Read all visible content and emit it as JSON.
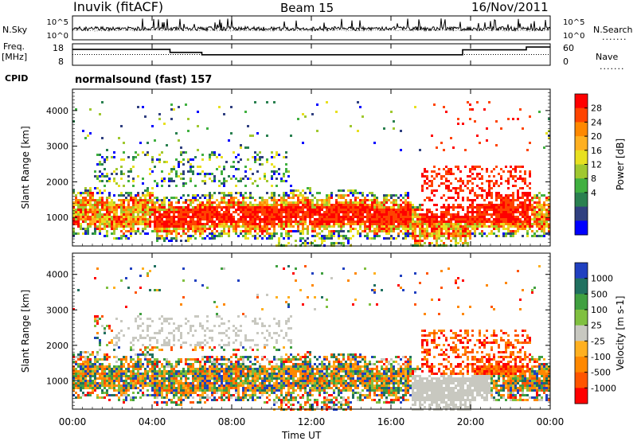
{
  "header": {
    "station": "Inuvik (fitACF)",
    "beam": "Beam 15",
    "date": "16/Nov/2011"
  },
  "labels": {
    "nsky": "N.Sky",
    "freq": "Freq.",
    "mhz": "[MHz]",
    "cpid": "CPID",
    "nsearch": "N.Search",
    "nave": "Nave",
    "dots": "......."
  },
  "cpid_text": "normalsound (fast) 157",
  "chart_data": [
    {
      "type": "line",
      "name": "noise panel",
      "y_left_ticks": [
        "10^5",
        "10^0"
      ],
      "y_right_ticks": [
        "10^5",
        "10^0"
      ],
      "series": [
        {
          "name": "N.Sky",
          "style": "solid"
        },
        {
          "name": "N.Search",
          "style": "dotted"
        }
      ]
    },
    {
      "type": "line",
      "name": "frequency panel",
      "y_left_ticks": [
        "18",
        "8"
      ],
      "y_right_ticks": [
        "60",
        "0"
      ],
      "freq_steps": [
        {
          "t0": 0,
          "t1": 4.9,
          "v": 0.74
        },
        {
          "t0": 4.9,
          "t1": 6.5,
          "v": 0.6
        },
        {
          "t0": 6.5,
          "t1": 19.6,
          "v": 0.49
        },
        {
          "t0": 19.6,
          "t1": 22.8,
          "v": 0.72
        },
        {
          "t0": 22.8,
          "t1": 24,
          "v": 0.85
        }
      ],
      "nave_level": 0.5
    },
    {
      "type": "heatmap",
      "name": "power",
      "ylabel": "Slant Range [km]",
      "y_ticks": [
        1000,
        2000,
        3000,
        4000
      ],
      "ylim": [
        200,
        4600
      ],
      "colorbar_label": "Power [dB]",
      "colorbar_ticks": [
        "28",
        "24",
        "20",
        "16",
        "12",
        "8",
        "4"
      ],
      "colorbar_colors": [
        "#ff0000",
        "#ff4400",
        "#ff8800",
        "#ffb020",
        "#e8e020",
        "#a0c830",
        "#40b040",
        "#2a8050",
        "#304080",
        "#0000ff"
      ]
    },
    {
      "type": "heatmap",
      "name": "velocity",
      "ylabel": "Slant Range [km]",
      "y_ticks": [
        1000,
        2000,
        3000,
        4000
      ],
      "ylim": [
        200,
        4600
      ],
      "colorbar_label": "Velocity [m s-1]",
      "colorbar_ticks": [
        "1000",
        "500",
        "100",
        "25",
        "-25",
        "-100",
        "-500",
        "-1000"
      ],
      "colorbar_colors": [
        "#2040c0",
        "#207060",
        "#40a040",
        "#80c040",
        "#c8c8c0",
        "#ffb020",
        "#ff8800",
        "#ff5500",
        "#ff0000"
      ]
    }
  ],
  "x_axis": {
    "label": "Time UT",
    "ticks": [
      "00:00",
      "04:00",
      "08:00",
      "12:00",
      "16:00",
      "20:00",
      "00:00"
    ]
  }
}
